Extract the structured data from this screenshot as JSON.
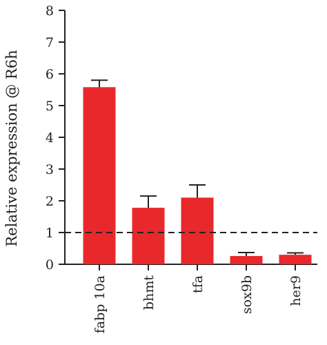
{
  "chart_data": {
    "type": "bar",
    "categories": [
      "fabp 10a",
      "bhmt",
      "tfa",
      "sox9b",
      "her9"
    ],
    "values": [
      5.58,
      1.78,
      2.1,
      0.26,
      0.3
    ],
    "errors": [
      0.22,
      0.37,
      0.4,
      0.11,
      0.06
    ],
    "ylabel": "Relative expression @ R6h",
    "xlabel": "",
    "ylim": [
      0,
      8
    ],
    "yticks": [
      0,
      1,
      2,
      3,
      4,
      5,
      6,
      7,
      8
    ],
    "reference_line": 1,
    "bar_color": "#e8282b",
    "grid": false
  }
}
